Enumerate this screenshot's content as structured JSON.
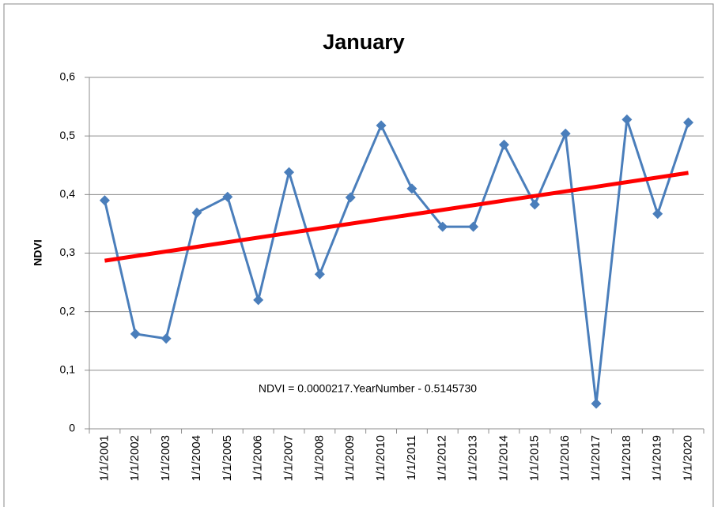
{
  "chart_data": {
    "type": "line",
    "title": "January",
    "y_label": "NDVI",
    "annotation": "NDVI = 0.0000217.YearNumber - 0.5145730",
    "categories": [
      "1/1/2001",
      "1/1/2002",
      "1/1/2003",
      "1/1/2004",
      "1/1/2005",
      "1/1/2006",
      "1/1/2007",
      "1/1/2008",
      "1/1/2009",
      "1/1/2010",
      "1/1/2011",
      "1/1/2012",
      "1/1/2013",
      "1/1/2014",
      "1/1/2015",
      "1/1/2016",
      "1/1/2017",
      "1/1/2018",
      "1/1/2019",
      "1/1/2020"
    ],
    "series": [
      {
        "color": "#4a7ebb",
        "values": [
          0.39,
          0.162,
          0.154,
          0.369,
          0.396,
          0.22,
          0.438,
          0.264,
          0.395,
          0.518,
          0.41,
          0.345,
          0.345,
          0.485,
          0.383,
          0.504,
          0.043,
          0.528,
          0.367,
          0.523
        ]
      }
    ],
    "trendline": {
      "color": "#ff0000",
      "values": [
        0.287,
        0.437
      ]
    },
    "ylim": [
      0,
      0.6
    ],
    "yticks": [
      0,
      {
        "value": 0.1,
        "label": "0,1"
      },
      {
        "value": 0.2,
        "label": "0,2"
      },
      {
        "value": 0.3,
        "label": "0,3"
      },
      {
        "value": 0.4,
        "label": "0,4"
      },
      {
        "value": 0.5,
        "label": "0,5"
      },
      {
        "value": 0.6,
        "label": "0,6"
      }
    ],
    "grid": true
  }
}
